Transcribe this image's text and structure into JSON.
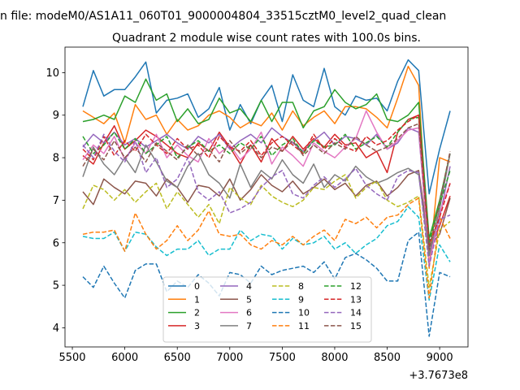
{
  "figure": {
    "suptitle": "n file: modeM0/AS1A11_060T01_9000004804_33515cztM0_level2_quad_clean",
    "title": "Quadrant 2 module wise count rates with 100.0s bins.",
    "x_offset_label": "+3.7673e8"
  },
  "chart_data": {
    "type": "line",
    "title": "Quadrant 2 module wise count rates with 100.0s bins.",
    "xlabel": "",
    "ylabel": "",
    "x_offset": "+3.7673e8",
    "xlim": [
      5430,
      9270
    ],
    "ylim": [
      3.55,
      10.6
    ],
    "x_ticks": [
      5500,
      6000,
      6500,
      7000,
      7500,
      8000,
      8500,
      9000
    ],
    "x_tick_labels": [
      "5500",
      "6000",
      "6500",
      "7000",
      "7500",
      "8000",
      "8500",
      "9000"
    ],
    "y_ticks": [
      4,
      5,
      6,
      7,
      8,
      9,
      10
    ],
    "y_tick_labels": [
      "4",
      "5",
      "6",
      "7",
      "8",
      "9",
      "10"
    ],
    "grid": false,
    "legend_position": "lower center",
    "legend_columns": 4,
    "x": [
      5600,
      5700,
      5800,
      5900,
      6000,
      6100,
      6200,
      6300,
      6400,
      6500,
      6600,
      6700,
      6800,
      6900,
      7000,
      7100,
      7200,
      7300,
      7400,
      7500,
      7600,
      7700,
      7800,
      7900,
      8000,
      8100,
      8200,
      8300,
      8400,
      8500,
      8600,
      8700,
      8800,
      8900,
      9000,
      9100
    ],
    "series": [
      {
        "name": "0",
        "color": "#1f77b4",
        "dash": "solid",
        "values": [
          9.2,
          10.05,
          9.45,
          9.6,
          9.6,
          9.9,
          10.25,
          9.05,
          9.35,
          9.4,
          9.5,
          8.95,
          9.15,
          9.65,
          8.65,
          9.25,
          8.8,
          9.35,
          9.7,
          8.85,
          9.95,
          9.35,
          9.2,
          10.1,
          9.2,
          9.0,
          9.45,
          9.35,
          9.4,
          9.1,
          9.8,
          10.3,
          10.05,
          7.15,
          8.2,
          9.1
        ]
      },
      {
        "name": "1",
        "color": "#ff7f0e",
        "dash": "solid",
        "values": [
          9.1,
          8.95,
          8.8,
          9.05,
          8.35,
          9.25,
          8.9,
          9.0,
          8.55,
          8.9,
          8.65,
          8.75,
          9.0,
          9.1,
          8.95,
          8.7,
          8.85,
          8.75,
          9.05,
          8.65,
          9.1,
          8.75,
          8.95,
          9.1,
          8.8,
          9.2,
          9.2,
          9.15,
          8.95,
          8.7,
          9.4,
          10.15,
          9.7,
          5.4,
          8.0,
          7.9
        ]
      },
      {
        "name": "2",
        "color": "#2ca02c",
        "dash": "solid",
        "values": [
          8.85,
          8.9,
          9.0,
          8.9,
          9.45,
          9.3,
          9.85,
          9.35,
          9.5,
          8.85,
          9.15,
          8.8,
          8.9,
          9.4,
          9.05,
          9.15,
          8.85,
          9.35,
          8.85,
          9.3,
          9.3,
          8.7,
          9.1,
          9.2,
          9.6,
          9.3,
          9.15,
          9.25,
          9.5,
          8.9,
          8.85,
          9.0,
          9.3,
          6.1,
          7.0,
          8.1
        ]
      },
      {
        "name": "3",
        "color": "#d62728",
        "dash": "solid",
        "values": [
          8.05,
          7.85,
          8.35,
          8.75,
          8.2,
          8.4,
          8.65,
          8.5,
          8.3,
          8.1,
          8.0,
          8.35,
          8.15,
          8.6,
          8.25,
          7.85,
          8.3,
          7.9,
          8.45,
          8.15,
          8.5,
          8.2,
          8.45,
          8.25,
          8.55,
          8.3,
          8.35,
          8.0,
          8.15,
          7.65,
          8.6,
          8.9,
          9.0,
          5.8,
          6.4,
          7.1
        ]
      },
      {
        "name": "4",
        "color": "#9467bd",
        "dash": "solid",
        "values": [
          8.25,
          8.55,
          8.35,
          8.6,
          8.3,
          8.45,
          8.25,
          8.4,
          8.55,
          8.35,
          8.2,
          8.5,
          8.35,
          8.55,
          8.2,
          8.4,
          8.55,
          8.35,
          8.7,
          8.5,
          8.35,
          8.15,
          8.4,
          8.6,
          8.3,
          8.5,
          8.45,
          8.3,
          8.55,
          8.2,
          8.35,
          8.7,
          8.6,
          5.7,
          6.6,
          7.8
        ]
      },
      {
        "name": "5",
        "color": "#8c564b",
        "dash": "solid",
        "values": [
          7.2,
          6.9,
          7.5,
          7.3,
          7.15,
          7.45,
          7.4,
          7.1,
          7.5,
          7.3,
          6.95,
          7.35,
          7.3,
          7.1,
          7.5,
          7.0,
          7.25,
          7.6,
          7.35,
          7.2,
          7.45,
          7.15,
          7.3,
          7.5,
          7.25,
          7.4,
          7.1,
          7.35,
          7.45,
          7.1,
          7.3,
          7.6,
          7.7,
          5.9,
          6.2,
          7.05
        ]
      },
      {
        "name": "6",
        "color": "#e377c2",
        "dash": "solid",
        "values": [
          7.95,
          8.3,
          8.1,
          8.5,
          7.95,
          8.35,
          8.1,
          8.55,
          8.0,
          8.3,
          8.05,
          7.9,
          8.45,
          8.1,
          8.3,
          7.95,
          8.2,
          8.6,
          7.85,
          8.25,
          8.05,
          7.8,
          8.35,
          8.15,
          8.0,
          8.25,
          8.45,
          9.1,
          8.6,
          8.2,
          8.4,
          8.65,
          8.7,
          5.5,
          6.7,
          7.4
        ]
      },
      {
        "name": "7",
        "color": "#7f7f7f",
        "dash": "solid",
        "values": [
          7.55,
          8.25,
          7.85,
          7.6,
          8.0,
          7.65,
          8.3,
          7.9,
          7.45,
          7.3,
          7.8,
          8.1,
          7.6,
          7.4,
          7.05,
          7.85,
          7.3,
          7.7,
          7.5,
          7.95,
          7.6,
          7.4,
          7.85,
          7.3,
          7.6,
          7.45,
          7.8,
          7.55,
          7.4,
          7.5,
          7.65,
          7.75,
          7.6,
          5.7,
          6.8,
          8.1
        ]
      },
      {
        "name": "8",
        "color": "#bcbd22",
        "dash": "dashed",
        "values": [
          6.8,
          7.35,
          7.25,
          7.0,
          7.25,
          6.95,
          7.2,
          7.4,
          6.8,
          7.2,
          6.9,
          6.6,
          6.9,
          6.45,
          7.3,
          7.05,
          6.9,
          7.35,
          7.1,
          6.95,
          6.85,
          7.0,
          7.3,
          7.25,
          7.45,
          7.6,
          7.05,
          7.3,
          7.45,
          7.0,
          6.85,
          6.95,
          7.1,
          4.95,
          6.3,
          6.5
        ]
      },
      {
        "name": "9",
        "color": "#17becf",
        "dash": "dashed",
        "values": [
          6.15,
          6.1,
          6.1,
          6.25,
          5.8,
          6.25,
          6.2,
          5.9,
          5.7,
          5.85,
          5.85,
          6.05,
          5.7,
          5.85,
          5.85,
          6.3,
          6.05,
          6.2,
          6.15,
          5.85,
          6.1,
          5.95,
          6.0,
          6.15,
          5.85,
          6.0,
          5.75,
          5.95,
          6.1,
          6.4,
          6.5,
          6.85,
          6.6,
          4.65,
          5.95,
          5.55
        ]
      },
      {
        "name": "10",
        "color": "#1f77b4",
        "dash": "dashed",
        "values": [
          5.2,
          4.95,
          5.45,
          5.05,
          4.7,
          5.35,
          5.5,
          5.5,
          4.85,
          5.1,
          4.95,
          5.25,
          5.05,
          4.75,
          5.3,
          5.25,
          5.05,
          5.45,
          5.25,
          5.35,
          5.4,
          5.45,
          5.3,
          5.55,
          5.15,
          5.65,
          5.75,
          5.6,
          5.4,
          5.1,
          5.1,
          6.05,
          6.25,
          3.8,
          5.3,
          5.2
        ]
      },
      {
        "name": "11",
        "color": "#ff7f0e",
        "dash": "dashed",
        "values": [
          6.2,
          6.25,
          6.25,
          6.3,
          5.8,
          6.7,
          6.2,
          5.85,
          6.05,
          6.4,
          6.05,
          6.3,
          6.75,
          6.2,
          6.15,
          6.2,
          5.95,
          5.85,
          6.05,
          5.95,
          6.15,
          5.95,
          6.15,
          6.3,
          6.05,
          6.55,
          6.45,
          6.6,
          6.35,
          6.6,
          6.65,
          6.9,
          7.05,
          4.7,
          6.6,
          6.1
        ]
      },
      {
        "name": "12",
        "color": "#2ca02c",
        "dash": "dashed",
        "values": [
          8.5,
          8.1,
          8.3,
          8.6,
          8.2,
          8.45,
          8.1,
          8.3,
          8.5,
          8.0,
          8.25,
          8.4,
          8.15,
          8.3,
          8.1,
          8.35,
          8.2,
          8.5,
          8.05,
          8.3,
          8.45,
          8.1,
          8.4,
          8.25,
          8.3,
          8.55,
          8.2,
          8.35,
          8.5,
          8.25,
          8.6,
          8.9,
          8.95,
          6.0,
          6.9,
          7.7
        ]
      },
      {
        "name": "13",
        "color": "#d62728",
        "dash": "dashed",
        "values": [
          8.2,
          7.95,
          8.5,
          8.05,
          8.4,
          8.15,
          8.55,
          8.3,
          8.1,
          8.45,
          8.2,
          8.3,
          8.0,
          8.5,
          8.25,
          8.15,
          8.4,
          8.05,
          8.35,
          8.5,
          8.3,
          8.1,
          8.55,
          8.2,
          8.45,
          8.25,
          8.15,
          8.5,
          8.3,
          8.4,
          8.65,
          8.85,
          9.0,
          5.95,
          6.6,
          7.4
        ]
      },
      {
        "name": "14",
        "color": "#9467bd",
        "dash": "dashed",
        "values": [
          8.3,
          8.0,
          8.55,
          8.15,
          7.9,
          8.4,
          7.65,
          8.0,
          7.3,
          7.5,
          8.0,
          7.2,
          7.0,
          7.2,
          6.7,
          6.8,
          6.95,
          7.3,
          7.55,
          7.7,
          7.15,
          7.05,
          7.35,
          7.55,
          7.3,
          7.5,
          7.75,
          7.35,
          7.15,
          7.0,
          7.55,
          7.7,
          7.65,
          5.45,
          6.55,
          6.65
        ]
      },
      {
        "name": "15",
        "color": "#8c564b",
        "dash": "dashed",
        "values": [
          7.8,
          8.2,
          7.95,
          8.4,
          8.0,
          8.25,
          7.9,
          8.35,
          8.15,
          7.95,
          8.3,
          8.05,
          8.2,
          7.9,
          8.4,
          8.1,
          8.3,
          8.0,
          8.25,
          8.15,
          8.4,
          8.05,
          8.3,
          8.1,
          8.35,
          8.2,
          8.5,
          8.3,
          8.15,
          8.25,
          8.45,
          8.7,
          8.8,
          5.85,
          6.95,
          8.15
        ]
      }
    ]
  }
}
